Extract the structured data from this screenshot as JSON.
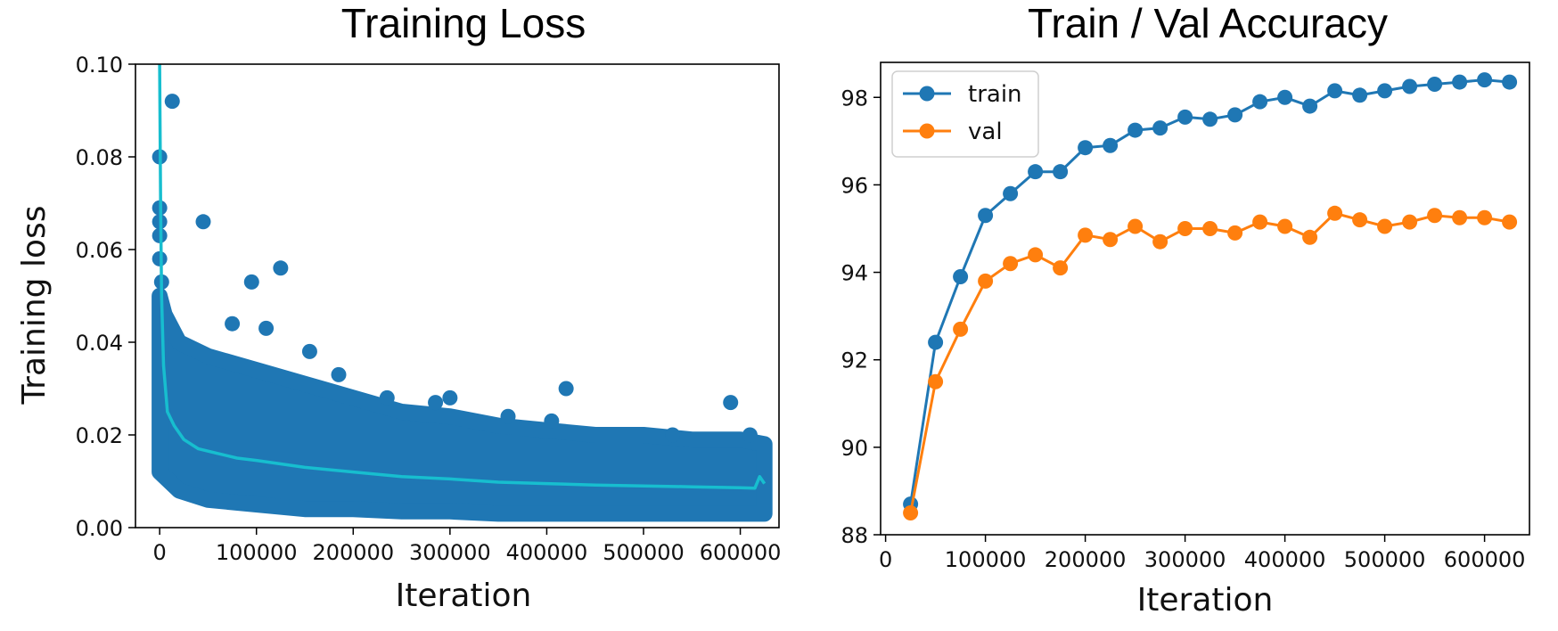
{
  "chart_data": [
    {
      "type": "scatter",
      "title": "Training Loss",
      "xlabel": "Iteration",
      "ylabel": "Training loss",
      "xlim": [
        -25000,
        640000
      ],
      "ylim": [
        0.0,
        0.1
      ],
      "x_ticks": [
        0,
        100000,
        200000,
        300000,
        400000,
        500000,
        600000
      ],
      "x_tick_labels": [
        "0",
        "100000",
        "200000",
        "300000",
        "400000",
        "500000",
        "600000"
      ],
      "y_ticks": [
        0.0,
        0.02,
        0.04,
        0.06,
        0.08,
        0.1
      ],
      "y_tick_labels": [
        "0.00",
        "0.02",
        "0.04",
        "0.06",
        "0.08",
        "0.10"
      ],
      "grid": false,
      "colors": {
        "points": "#1f77b4",
        "smoothed": "#17becf"
      },
      "outlier_points": [
        {
          "x": 0,
          "y": 0.08
        },
        {
          "x": 0,
          "y": 0.069
        },
        {
          "x": 0,
          "y": 0.066
        },
        {
          "x": 0,
          "y": 0.063
        },
        {
          "x": 0,
          "y": 0.058
        },
        {
          "x": 2000,
          "y": 0.053
        },
        {
          "x": 13000,
          "y": 0.092
        },
        {
          "x": 45000,
          "y": 0.066
        },
        {
          "x": 95000,
          "y": 0.053
        },
        {
          "x": 125000,
          "y": 0.056
        },
        {
          "x": 110000,
          "y": 0.043
        },
        {
          "x": 75000,
          "y": 0.044
        },
        {
          "x": 155000,
          "y": 0.038
        },
        {
          "x": 185000,
          "y": 0.033
        },
        {
          "x": 235000,
          "y": 0.028
        },
        {
          "x": 285000,
          "y": 0.027
        },
        {
          "x": 300000,
          "y": 0.028
        },
        {
          "x": 360000,
          "y": 0.024
        },
        {
          "x": 420000,
          "y": 0.03
        },
        {
          "x": 405000,
          "y": 0.023
        },
        {
          "x": 530000,
          "y": 0.02
        },
        {
          "x": 590000,
          "y": 0.027
        },
        {
          "x": 610000,
          "y": 0.02
        }
      ],
      "envelope_upper": [
        [
          0,
          0.05
        ],
        [
          5000,
          0.046
        ],
        [
          20000,
          0.04
        ],
        [
          50000,
          0.037
        ],
        [
          100000,
          0.034
        ],
        [
          150000,
          0.031
        ],
        [
          200000,
          0.028
        ],
        [
          250000,
          0.025
        ],
        [
          300000,
          0.024
        ],
        [
          350000,
          0.022
        ],
        [
          400000,
          0.021
        ],
        [
          450000,
          0.02
        ],
        [
          500000,
          0.02
        ],
        [
          550000,
          0.019
        ],
        [
          600000,
          0.019
        ],
        [
          625000,
          0.018
        ]
      ],
      "envelope_lower": [
        [
          0,
          0.012
        ],
        [
          20000,
          0.008
        ],
        [
          50000,
          0.006
        ],
        [
          100000,
          0.005
        ],
        [
          150000,
          0.004
        ],
        [
          200000,
          0.004
        ],
        [
          250000,
          0.0035
        ],
        [
          300000,
          0.0035
        ],
        [
          350000,
          0.003
        ],
        [
          400000,
          0.003
        ],
        [
          450000,
          0.003
        ],
        [
          500000,
          0.003
        ],
        [
          550000,
          0.003
        ],
        [
          600000,
          0.003
        ],
        [
          625000,
          0.003
        ]
      ],
      "smoothed_line": [
        [
          0,
          0.1
        ],
        [
          1000,
          0.07
        ],
        [
          2000,
          0.05
        ],
        [
          4000,
          0.035
        ],
        [
          8000,
          0.025
        ],
        [
          15000,
          0.022
        ],
        [
          25000,
          0.019
        ],
        [
          40000,
          0.017
        ],
        [
          60000,
          0.016
        ],
        [
          80000,
          0.015
        ],
        [
          100000,
          0.0145
        ],
        [
          150000,
          0.013
        ],
        [
          200000,
          0.012
        ],
        [
          250000,
          0.011
        ],
        [
          300000,
          0.0105
        ],
        [
          350000,
          0.0098
        ],
        [
          400000,
          0.0095
        ],
        [
          450000,
          0.0092
        ],
        [
          500000,
          0.009
        ],
        [
          550000,
          0.0088
        ],
        [
          600000,
          0.0086
        ],
        [
          615000,
          0.0085
        ],
        [
          620000,
          0.011
        ],
        [
          625000,
          0.0095
        ]
      ]
    },
    {
      "type": "line",
      "title": "Train / Val Accuracy",
      "xlabel": "Iteration",
      "ylabel": "",
      "xlim": [
        -5000,
        645000
      ],
      "ylim": [
        88,
        98.8
      ],
      "x_ticks": [
        0,
        100000,
        200000,
        300000,
        400000,
        500000,
        600000
      ],
      "x_tick_labels": [
        "0",
        "100000",
        "200000",
        "300000",
        "400000",
        "500000",
        "600000"
      ],
      "y_ticks": [
        88,
        90,
        92,
        94,
        96,
        98
      ],
      "y_tick_labels": [
        "88",
        "90",
        "92",
        "94",
        "96",
        "98"
      ],
      "grid": false,
      "legend": "top-left",
      "x": [
        25000,
        50000,
        75000,
        100000,
        125000,
        150000,
        175000,
        200000,
        225000,
        250000,
        275000,
        300000,
        325000,
        350000,
        375000,
        400000,
        425000,
        450000,
        475000,
        500000,
        525000,
        550000,
        575000,
        600000,
        625000
      ],
      "series": [
        {
          "name": "train",
          "color": "#1f77b4",
          "values": [
            88.7,
            92.4,
            93.9,
            95.3,
            95.8,
            96.3,
            96.3,
            96.85,
            96.9,
            97.25,
            97.3,
            97.55,
            97.5,
            97.6,
            97.9,
            98.0,
            97.8,
            98.15,
            98.05,
            98.15,
            98.25,
            98.3,
            98.35,
            98.4,
            98.35
          ]
        },
        {
          "name": "val",
          "color": "#ff7f0e",
          "values": [
            88.5,
            91.5,
            92.7,
            93.8,
            94.2,
            94.4,
            94.1,
            94.85,
            94.75,
            95.05,
            94.7,
            95.0,
            95.0,
            94.9,
            95.15,
            95.05,
            94.8,
            95.35,
            95.2,
            95.05,
            95.15,
            95.3,
            95.25,
            95.25,
            95.15
          ]
        }
      ]
    }
  ]
}
